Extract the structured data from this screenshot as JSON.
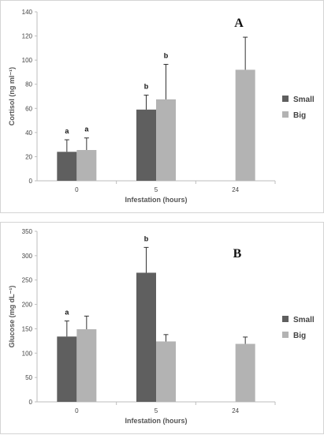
{
  "colors": {
    "small": "#5f5f5f",
    "big": "#b3b3b3",
    "axis": "#bdbdbd",
    "error": "#333333"
  },
  "chart_data": [
    {
      "type": "bar",
      "panel_label": "A",
      "categories": [
        "0",
        "5",
        "24"
      ],
      "xlabel": "Infestation (hours)",
      "ylabel": "Cortisol (ng ml⁻¹)",
      "ylim": [
        0,
        140
      ],
      "yticks": [
        0,
        20,
        40,
        60,
        80,
        100,
        120,
        140
      ],
      "legend_position": "right",
      "grid": false,
      "series": [
        {
          "name": "Small",
          "values": [
            24,
            59,
            null
          ],
          "errors": [
            10,
            12,
            null
          ],
          "labels": [
            "a",
            "b",
            null
          ]
        },
        {
          "name": "Big",
          "values": [
            25.5,
            67.5,
            92
          ],
          "errors": [
            10,
            29,
            27
          ],
          "labels": [
            "a",
            "b",
            null
          ]
        }
      ]
    },
    {
      "type": "bar",
      "panel_label": "B",
      "categories": [
        "0",
        "5",
        "24"
      ],
      "xlabel": "Infestation (hours)",
      "ylabel": "Glucose (mg dL⁻¹)",
      "ylim": [
        0,
        350
      ],
      "yticks": [
        0,
        50,
        100,
        150,
        200,
        250,
        300,
        350
      ],
      "legend_position": "right",
      "grid": false,
      "series": [
        {
          "name": "Small",
          "values": [
            134,
            265,
            null
          ],
          "errors": [
            32,
            52,
            null
          ],
          "labels": [
            "a",
            "b",
            null
          ]
        },
        {
          "name": "Big",
          "values": [
            149,
            124,
            119
          ],
          "errors": [
            27,
            14,
            14
          ],
          "labels": [
            null,
            null,
            null
          ]
        }
      ]
    }
  ]
}
